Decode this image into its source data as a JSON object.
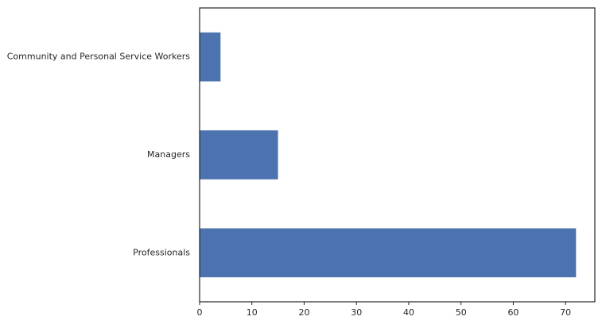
{
  "chart_data": {
    "type": "bar",
    "orientation": "horizontal",
    "categories": [
      "Community and Personal Service Workers",
      "Managers",
      "Professionals"
    ],
    "values": [
      4,
      15,
      72
    ],
    "xticks": [
      0,
      10,
      20,
      30,
      40,
      50,
      60,
      70
    ],
    "xlim": [
      0,
      75.6
    ],
    "grid": false,
    "legend": "none",
    "bar_color": "#4c72b0",
    "axis_color": "#262626"
  }
}
